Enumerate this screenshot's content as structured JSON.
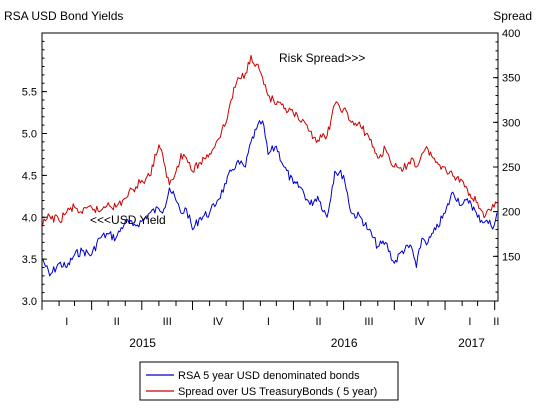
{
  "chart_data": {
    "type": "line",
    "title_left": "RSA USD Bond Yields",
    "title_right": "Spread",
    "left_axis": {
      "ylim": [
        3.0,
        6.2
      ],
      "ticks": [
        "3.0",
        "3.5",
        "4.0",
        "4.5",
        "5.0",
        "5.5"
      ]
    },
    "right_axis": {
      "ylim": [
        100,
        400
      ],
      "ticks": [
        "150",
        "200",
        "250",
        "300",
        "350",
        "400"
      ]
    },
    "x_axis": {
      "quarters": [
        "I",
        "II",
        "III",
        "IV",
        "I",
        "II",
        "III",
        "IV",
        "I",
        "II"
      ],
      "years": [
        "2015",
        "2016",
        "2017"
      ]
    },
    "grid": false,
    "annotations": {
      "spread": "Risk Spread>>>",
      "yield": "<<<USD Yield"
    },
    "legend": {
      "position": "bottom-center",
      "items": [
        {
          "label": "RSA 5 year USD denominated bonds",
          "color": "#0000cc"
        },
        {
          "label": "Spread over US TreasuryBonds ( 5 year)",
          "color": "#cc0000"
        }
      ]
    },
    "series": [
      {
        "name": "RSA 5 year USD denominated bonds",
        "axis": "left",
        "color": "#0000cc",
        "dates": [
          "2015-01-02",
          "2015-01-15",
          "2015-02-01",
          "2015-02-15",
          "2015-03-01",
          "2015-03-15",
          "2015-04-01",
          "2015-04-15",
          "2015-05-01",
          "2015-05-15",
          "2015-06-01",
          "2015-06-15",
          "2015-07-01",
          "2015-07-15",
          "2015-08-01",
          "2015-08-10",
          "2015-08-20",
          "2015-09-01",
          "2015-09-10",
          "2015-09-20",
          "2015-10-01",
          "2015-10-15",
          "2015-11-01",
          "2015-11-15",
          "2015-12-01",
          "2015-12-10",
          "2015-12-20",
          "2016-01-05",
          "2016-01-15",
          "2016-01-25",
          "2016-02-05",
          "2016-02-15",
          "2016-03-01",
          "2016-03-15",
          "2016-04-01",
          "2016-04-15",
          "2016-05-01",
          "2016-05-15",
          "2016-06-01",
          "2016-06-15",
          "2016-07-01",
          "2016-07-15",
          "2016-08-01",
          "2016-08-15",
          "2016-09-01",
          "2016-09-15",
          "2016-10-01",
          "2016-10-15",
          "2016-11-01",
          "2016-11-10",
          "2016-11-20",
          "2016-12-01",
          "2016-12-15",
          "2017-01-01",
          "2017-01-15",
          "2017-02-01",
          "2017-02-15",
          "2017-03-01",
          "2017-03-15",
          "2017-03-31",
          "2017-04-05"
        ],
        "values": [
          3.5,
          3.3,
          3.45,
          3.4,
          3.55,
          3.6,
          3.55,
          3.75,
          3.8,
          3.75,
          3.95,
          3.9,
          3.95,
          4.05,
          4.1,
          4.1,
          4.35,
          4.2,
          4.05,
          4.1,
          3.85,
          4.0,
          4.05,
          4.2,
          4.4,
          4.55,
          4.65,
          4.6,
          4.9,
          5.05,
          5.15,
          4.75,
          4.85,
          4.6,
          4.4,
          4.35,
          4.15,
          4.25,
          4.0,
          4.55,
          4.5,
          4.05,
          4.0,
          3.85,
          3.65,
          3.7,
          3.45,
          3.6,
          3.65,
          3.4,
          3.75,
          3.7,
          3.85,
          4.05,
          4.3,
          4.15,
          4.2,
          4.0,
          3.95,
          3.9,
          4.05
        ]
      },
      {
        "name": "Spread over US TreasuryBonds ( 5 year)",
        "axis": "right",
        "color": "#cc0000",
        "dates": [
          "2015-01-02",
          "2015-01-15",
          "2015-02-01",
          "2015-02-15",
          "2015-03-01",
          "2015-03-15",
          "2015-04-01",
          "2015-04-15",
          "2015-05-01",
          "2015-05-15",
          "2015-06-01",
          "2015-06-15",
          "2015-07-01",
          "2015-07-15",
          "2015-08-01",
          "2015-08-10",
          "2015-08-20",
          "2015-09-01",
          "2015-09-10",
          "2015-09-20",
          "2015-10-01",
          "2015-10-15",
          "2015-11-01",
          "2015-11-15",
          "2015-12-01",
          "2015-12-10",
          "2015-12-20",
          "2016-01-05",
          "2016-01-15",
          "2016-01-25",
          "2016-02-05",
          "2016-02-15",
          "2016-03-01",
          "2016-03-15",
          "2016-04-01",
          "2016-04-15",
          "2016-05-01",
          "2016-05-15",
          "2016-06-01",
          "2016-06-15",
          "2016-07-01",
          "2016-07-15",
          "2016-08-01",
          "2016-08-15",
          "2016-09-01",
          "2016-09-15",
          "2016-10-01",
          "2016-10-15",
          "2016-11-01",
          "2016-11-10",
          "2016-11-20",
          "2016-12-01",
          "2016-12-15",
          "2017-01-01",
          "2017-01-15",
          "2017-02-01",
          "2017-02-15",
          "2017-03-01",
          "2017-03-15",
          "2017-03-31",
          "2017-04-05"
        ],
        "values": [
          185,
          195,
          190,
          200,
          205,
          198,
          205,
          200,
          210,
          205,
          215,
          225,
          235,
          240,
          275,
          255,
          230,
          245,
          265,
          260,
          245,
          255,
          265,
          280,
          300,
          325,
          345,
          355,
          375,
          365,
          350,
          330,
          320,
          315,
          310,
          300,
          290,
          280,
          285,
          320,
          315,
          300,
          295,
          285,
          260,
          270,
          250,
          245,
          260,
          250,
          265,
          270,
          255,
          250,
          240,
          235,
          220,
          210,
          195,
          205,
          210
        ]
      }
    ]
  }
}
